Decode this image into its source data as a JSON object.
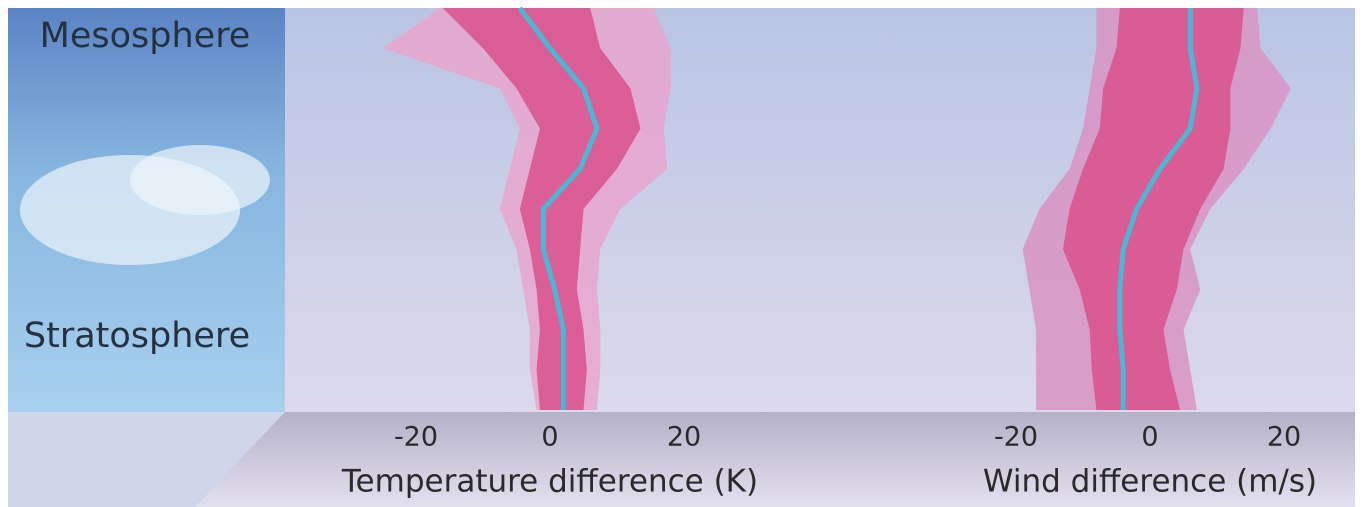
{
  "layers": [
    "Mesosphere",
    "Stratosphere"
  ],
  "chart_data": [
    {
      "type": "profile",
      "xlabel": "Temperature difference (K)",
      "xlim": [
        -40,
        40
      ],
      "xticks": [
        -20,
        0,
        20
      ],
      "categories": [
        null,
        null,
        null,
        null,
        null,
        null,
        null,
        null,
        null,
        null,
        null
      ],
      "bands": [
        {
          "color": "#e9a6cf",
          "low": [
            -16.5,
            -25,
            -7.5,
            -4.5,
            -6,
            -7.5,
            -5,
            -4,
            -3,
            -3,
            -2
          ],
          "high": [
            15.5,
            18,
            18,
            17,
            17.5,
            10.5,
            7.5,
            7,
            7.5,
            7.5,
            7
          ]
        },
        {
          "color": "#d9558f",
          "low": [
            -16,
            -10,
            -5,
            -1.5,
            -3,
            -4.5,
            -3,
            -2,
            -1.5,
            -2,
            -1.5
          ],
          "high": [
            6,
            7.5,
            12,
            13.5,
            10,
            5,
            4.5,
            4,
            5,
            5.5,
            5
          ]
        }
      ],
      "series": [
        {
          "color": "#4db6d3",
          "values": [
            -4.5,
            0,
            5,
            7,
            4.5,
            -1,
            -1,
            0.7,
            2,
            2,
            2
          ]
        }
      ]
    },
    {
      "type": "profile",
      "xlabel": "Wind difference (m/s)",
      "xlim": [
        -30,
        30
      ],
      "xticks": [
        -20,
        0,
        20
      ],
      "categories": [
        null,
        null,
        null,
        null,
        null,
        null,
        null,
        null,
        null,
        null,
        null
      ],
      "bands": [
        {
          "color": "#d993c4",
          "low": [
            -8,
            -8,
            -9,
            -10,
            -12,
            -16.5,
            -19,
            -18,
            -17,
            -17,
            -17
          ],
          "high": [
            16,
            16.5,
            21,
            18,
            14,
            9,
            6,
            7.5,
            5,
            6,
            7
          ]
        },
        {
          "color": "#d9558f",
          "low": [
            -4.5,
            -5,
            -7,
            -7.5,
            -10,
            -12,
            -13,
            -10.5,
            -9,
            -8.7,
            -8
          ],
          "high": [
            14,
            13.5,
            12,
            12,
            11,
            7.5,
            5,
            4,
            2,
            3,
            4.5
          ]
        }
      ],
      "series": [
        {
          "color": "#4db6d3",
          "values": [
            6,
            6,
            7,
            6,
            1.5,
            -2,
            -4,
            -4.5,
            -4.5,
            -4,
            -4
          ]
        }
      ]
    }
  ]
}
